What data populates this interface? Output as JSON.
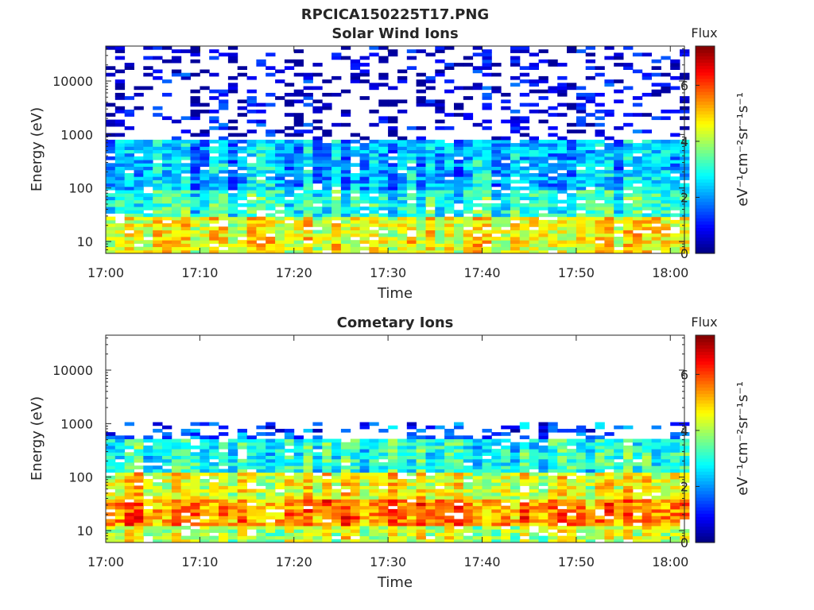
{
  "figure_title": "RPCICA150225T17.PNG",
  "chart_data": [
    {
      "type": "heatmap",
      "title": "Solar Wind Ions",
      "xlabel": "Time",
      "ylabel": "Energy (eV)",
      "x_ticks": [
        "17:00",
        "17:10",
        "17:20",
        "17:30",
        "17:40",
        "17:50",
        "18:00"
      ],
      "y_ticks": [
        "10",
        "100",
        "1000",
        "10000"
      ],
      "y_scale": "log",
      "ylim": [
        6,
        45000
      ],
      "colorbar": {
        "title": "Flux",
        "label": "eV⁻¹cm⁻²sr⁻¹s⁻¹",
        "ticks": [
          "0",
          "2",
          "4",
          "6"
        ],
        "range": [
          0,
          7.4
        ],
        "colormap": "jet"
      },
      "energy_bands": [
        {
          "emin": 6,
          "emax": 30,
          "typical_flux": 4.5
        },
        {
          "emin": 30,
          "emax": 90,
          "typical_flux": 3.0
        },
        {
          "emin": 90,
          "emax": 800,
          "typical_flux": 2.2
        },
        {
          "emin": 800,
          "emax": 45000,
          "typical_flux": 0.6,
          "sparse": true
        }
      ],
      "seed": 11
    },
    {
      "type": "heatmap",
      "title": "Cometary Ions",
      "xlabel": "Time",
      "ylabel": "Energy (eV)",
      "x_ticks": [
        "17:00",
        "17:10",
        "17:20",
        "17:30",
        "17:40",
        "17:50",
        "18:00"
      ],
      "y_ticks": [
        "10",
        "100",
        "1000",
        "10000"
      ],
      "y_scale": "log",
      "ylim": [
        6,
        45000
      ],
      "colorbar": {
        "title": "Flux",
        "label": "eV⁻¹cm⁻²sr⁻¹s⁻¹",
        "ticks": [
          "0",
          "2",
          "4",
          "6"
        ],
        "range": [
          0,
          7.4
        ],
        "colormap": "jet"
      },
      "energy_bands": [
        {
          "emin": 6,
          "emax": 12,
          "typical_flux": 4.2
        },
        {
          "emin": 12,
          "emax": 40,
          "typical_flux": 5.5
        },
        {
          "emin": 40,
          "emax": 120,
          "typical_flux": 4.5
        },
        {
          "emin": 120,
          "emax": 500,
          "typical_flux": 3.0
        },
        {
          "emin": 500,
          "emax": 1100,
          "typical_flux": 1.5,
          "sparse": true
        }
      ],
      "seed": 29
    }
  ]
}
